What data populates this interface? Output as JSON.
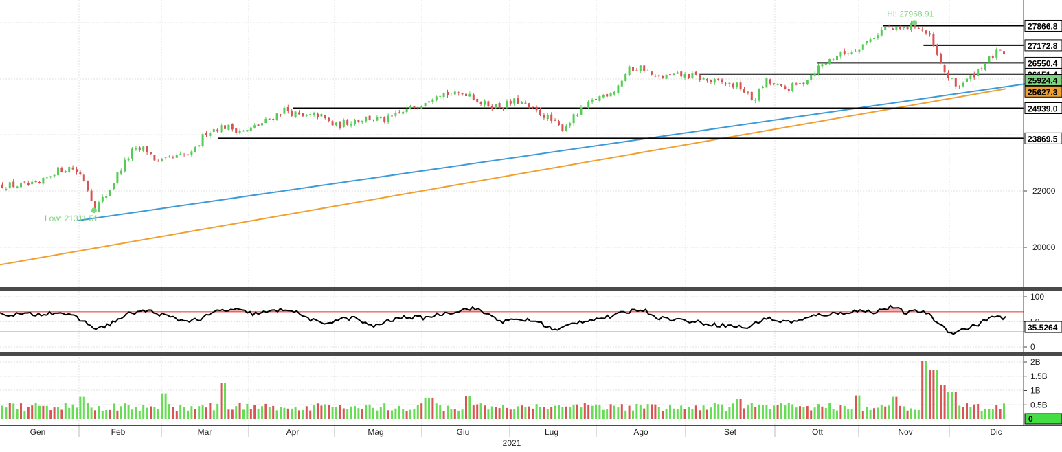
{
  "chart_data": {
    "type": "candlestick",
    "panels": [
      "price",
      "rsi",
      "volume"
    ],
    "x_year_label": "2021",
    "x_months": [
      "Gen",
      "Feb",
      "Mar",
      "Apr",
      "Mag",
      "Giu",
      "Lug",
      "Ago",
      "Set",
      "Ott",
      "Nov",
      "Dic"
    ],
    "price": {
      "ylim": [
        18700,
        28500
      ],
      "y_ticks": [
        {
          "value": 20000,
          "label": "20000"
        },
        {
          "value": 22000,
          "label": "22000"
        }
      ],
      "high_annotation": {
        "label": "Hi: 27968.91",
        "value": 27968.91,
        "month_index": 10.1
      },
      "low_annotation": {
        "label": "Low: 21311.51",
        "value": 21311.51,
        "month_index": 0.7
      },
      "horizontal_levels": [
        {
          "value": 27866.8,
          "label": "27866.8",
          "from_month": 9.75
        },
        {
          "value": 27172.8,
          "label": "27172.8",
          "from_month": 10.2
        },
        {
          "value": 26550.4,
          "label": "26550.4",
          "from_month": 9.0
        },
        {
          "value": 26151.4,
          "label": "26151.4",
          "from_month": 7.65
        },
        {
          "value": 24939.0,
          "label": "24939.0",
          "from_month": 3.0
        },
        {
          "value": 23869.5,
          "label": "23869.5",
          "from_month": 2.15
        }
      ],
      "trendline": {
        "start_month": 0.5,
        "start_value": 20950,
        "end_month": 11.75,
        "end_value": 26000,
        "color": "#3d9ad8"
      },
      "moving_average": {
        "label": "25627.3",
        "value_end": 25627.3,
        "start_value": 19380,
        "color": "#f0a030"
      },
      "trend_tag": {
        "label": "25924.4",
        "value": 25890
      },
      "close_points": [
        {
          "m": 0.0,
          "v": 22200
        },
        {
          "m": 0.2,
          "v": 22700
        },
        {
          "m": 0.4,
          "v": 22850
        },
        {
          "m": 0.55,
          "v": 22500
        },
        {
          "m": 0.7,
          "v": 21400
        },
        {
          "m": 0.85,
          "v": 21900
        },
        {
          "m": 1.0,
          "v": 22700
        },
        {
          "m": 1.15,
          "v": 23400
        },
        {
          "m": 1.3,
          "v": 23500
        },
        {
          "m": 1.45,
          "v": 23000
        },
        {
          "m": 1.65,
          "v": 23200
        },
        {
          "m": 1.85,
          "v": 23300
        },
        {
          "m": 2.0,
          "v": 24100
        },
        {
          "m": 2.2,
          "v": 24300
        },
        {
          "m": 2.45,
          "v": 24100
        },
        {
          "m": 2.7,
          "v": 24500
        },
        {
          "m": 2.9,
          "v": 24900
        },
        {
          "m": 3.1,
          "v": 24600
        },
        {
          "m": 3.3,
          "v": 24700
        },
        {
          "m": 3.5,
          "v": 24300
        },
        {
          "m": 3.7,
          "v": 24500
        },
        {
          "m": 3.9,
          "v": 24600
        },
        {
          "m": 4.1,
          "v": 24500
        },
        {
          "m": 4.3,
          "v": 24800
        },
        {
          "m": 4.5,
          "v": 25100
        },
        {
          "m": 4.7,
          "v": 25500
        },
        {
          "m": 4.9,
          "v": 25400
        },
        {
          "m": 5.05,
          "v": 25500
        },
        {
          "m": 5.2,
          "v": 25100
        },
        {
          "m": 5.4,
          "v": 25000
        },
        {
          "m": 5.6,
          "v": 25200
        },
        {
          "m": 5.75,
          "v": 24900
        },
        {
          "m": 5.9,
          "v": 24700
        },
        {
          "m": 6.1,
          "v": 24200
        },
        {
          "m": 6.3,
          "v": 24800
        },
        {
          "m": 6.5,
          "v": 25300
        },
        {
          "m": 6.7,
          "v": 25600
        },
        {
          "m": 6.85,
          "v": 26300
        },
        {
          "m": 7.0,
          "v": 26400
        },
        {
          "m": 7.15,
          "v": 26000
        },
        {
          "m": 7.35,
          "v": 26100
        },
        {
          "m": 7.55,
          "v": 26100
        },
        {
          "m": 7.75,
          "v": 25900
        },
        {
          "m": 7.95,
          "v": 25800
        },
        {
          "m": 8.1,
          "v": 25700
        },
        {
          "m": 8.25,
          "v": 25200
        },
        {
          "m": 8.4,
          "v": 25900
        },
        {
          "m": 8.6,
          "v": 25600
        },
        {
          "m": 8.8,
          "v": 25800
        },
        {
          "m": 9.0,
          "v": 26400
        },
        {
          "m": 9.2,
          "v": 26800
        },
        {
          "m": 9.4,
          "v": 27000
        },
        {
          "m": 9.6,
          "v": 27400
        },
        {
          "m": 9.75,
          "v": 27800
        },
        {
          "m": 9.9,
          "v": 27700
        },
        {
          "m": 10.1,
          "v": 27900
        },
        {
          "m": 10.25,
          "v": 27500
        },
        {
          "m": 10.4,
          "v": 26300
        },
        {
          "m": 10.55,
          "v": 25700
        },
        {
          "m": 10.7,
          "v": 26000
        },
        {
          "m": 10.85,
          "v": 26500
        },
        {
          "m": 11.0,
          "v": 26900
        },
        {
          "m": 11.2,
          "v": 26800
        },
        {
          "m": 11.4,
          "v": 26600
        },
        {
          "m": 11.55,
          "v": 26400
        }
      ],
      "bull_color": "#55cc55",
      "bear_color": "#d95555"
    },
    "rsi": {
      "ylim": [
        0,
        100
      ],
      "y_ticks": [
        {
          "value": 100,
          "label": "100"
        },
        {
          "value": 50,
          "label": "50"
        },
        {
          "value": 0,
          "label": "0"
        }
      ],
      "overbought": 70,
      "oversold": 30,
      "current_label": "35.5264",
      "current_value": 35.5264,
      "points": [
        {
          "m": 0.0,
          "v": 65
        },
        {
          "m": 0.25,
          "v": 70
        },
        {
          "m": 0.45,
          "v": 60
        },
        {
          "m": 0.6,
          "v": 48
        },
        {
          "m": 0.75,
          "v": 35
        },
        {
          "m": 0.95,
          "v": 50
        },
        {
          "m": 1.15,
          "v": 68
        },
        {
          "m": 1.35,
          "v": 72
        },
        {
          "m": 1.55,
          "v": 62
        },
        {
          "m": 1.75,
          "v": 52
        },
        {
          "m": 1.95,
          "v": 55
        },
        {
          "m": 2.15,
          "v": 72
        },
        {
          "m": 2.35,
          "v": 74
        },
        {
          "m": 2.55,
          "v": 66
        },
        {
          "m": 2.75,
          "v": 70
        },
        {
          "m": 2.95,
          "v": 76
        },
        {
          "m": 3.15,
          "v": 60
        },
        {
          "m": 3.35,
          "v": 45
        },
        {
          "m": 3.55,
          "v": 55
        },
        {
          "m": 3.75,
          "v": 58
        },
        {
          "m": 3.95,
          "v": 40
        },
        {
          "m": 4.15,
          "v": 52
        },
        {
          "m": 4.35,
          "v": 60
        },
        {
          "m": 4.55,
          "v": 58
        },
        {
          "m": 4.75,
          "v": 66
        },
        {
          "m": 4.95,
          "v": 72
        },
        {
          "m": 5.1,
          "v": 78
        },
        {
          "m": 5.3,
          "v": 64
        },
        {
          "m": 5.45,
          "v": 50
        },
        {
          "m": 5.65,
          "v": 55
        },
        {
          "m": 5.85,
          "v": 50
        },
        {
          "m": 6.05,
          "v": 32
        },
        {
          "m": 6.25,
          "v": 48
        },
        {
          "m": 6.45,
          "v": 55
        },
        {
          "m": 6.65,
          "v": 60
        },
        {
          "m": 6.85,
          "v": 70
        },
        {
          "m": 7.0,
          "v": 76
        },
        {
          "m": 7.2,
          "v": 58
        },
        {
          "m": 7.4,
          "v": 55
        },
        {
          "m": 7.6,
          "v": 50
        },
        {
          "m": 7.8,
          "v": 45
        },
        {
          "m": 8.0,
          "v": 42
        },
        {
          "m": 8.2,
          "v": 38
        },
        {
          "m": 8.4,
          "v": 58
        },
        {
          "m": 8.6,
          "v": 50
        },
        {
          "m": 8.8,
          "v": 52
        },
        {
          "m": 9.0,
          "v": 64
        },
        {
          "m": 9.2,
          "v": 66
        },
        {
          "m": 9.45,
          "v": 72
        },
        {
          "m": 9.65,
          "v": 70
        },
        {
          "m": 9.85,
          "v": 80
        },
        {
          "m": 10.0,
          "v": 68
        },
        {
          "m": 10.2,
          "v": 72
        },
        {
          "m": 10.35,
          "v": 50
        },
        {
          "m": 10.5,
          "v": 28
        },
        {
          "m": 10.65,
          "v": 35
        },
        {
          "m": 10.8,
          "v": 45
        },
        {
          "m": 10.95,
          "v": 60
        },
        {
          "m": 11.15,
          "v": 55
        },
        {
          "m": 11.35,
          "v": 50
        },
        {
          "m": 11.55,
          "v": 36
        }
      ],
      "line_color": "#000000",
      "ob_color": "#e03030",
      "os_color": "#2db82d"
    },
    "volume": {
      "ylim": [
        0,
        2100000000
      ],
      "y_ticks": [
        {
          "value": 2000000000,
          "label": "2B"
        },
        {
          "value": 1500000000,
          "label": "1.5B"
        },
        {
          "value": 1000000000,
          "label": "1B"
        },
        {
          "value": 500000000,
          "label": "0.5B"
        }
      ],
      "current_label": "0",
      "spikes": [
        {
          "m": 0.55,
          "v": 780000000
        },
        {
          "m": 1.5,
          "v": 900000000
        },
        {
          "m": 2.2,
          "v": 1260000000
        },
        {
          "m": 4.6,
          "v": 750000000
        },
        {
          "m": 5.05,
          "v": 810000000
        },
        {
          "m": 8.1,
          "v": 700000000
        },
        {
          "m": 9.45,
          "v": 830000000
        },
        {
          "m": 9.85,
          "v": 780000000
        },
        {
          "m": 10.2,
          "v": 2030000000
        },
        {
          "m": 10.3,
          "v": 1720000000
        },
        {
          "m": 10.4,
          "v": 1200000000
        },
        {
          "m": 10.5,
          "v": 950000000
        }
      ],
      "base_level": 420000000
    }
  }
}
